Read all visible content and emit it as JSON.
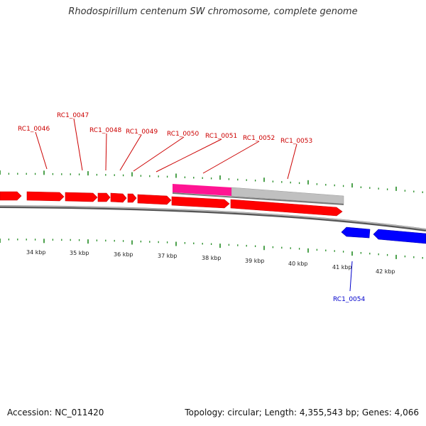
{
  "title": "Rhodospirillum centenum SW chromosome, complete genome",
  "footer": {
    "accession_text": "Accession: NC_011420",
    "summary_text": "Topology: circular; Length: 4,355,543 bp; Genes: 4,066"
  },
  "colors": {
    "forward_gene": "#ff0000",
    "reverse_gene": "#0000ff",
    "tick": "#228b22",
    "backbone": "#888888",
    "highlight_pink": "#ff1493",
    "highlight_grey": "#c0c0c0",
    "forward_label": "#cc0000",
    "reverse_label": "#0000cc"
  },
  "scale_labels": [
    "34 kbp",
    "35 kbp",
    "36 kbp",
    "37 kbp",
    "38 kbp",
    "39 kbp",
    "40 kbp",
    "41 kbp",
    "42 kbp"
  ],
  "genes": [
    {
      "label": "RC1_0046",
      "strand": "forward"
    },
    {
      "label": "RC1_0047",
      "strand": "forward"
    },
    {
      "label": "RC1_0048",
      "strand": "forward"
    },
    {
      "label": "RC1_0049",
      "strand": "forward"
    },
    {
      "label": "RC1_0050",
      "strand": "forward"
    },
    {
      "label": "RC1_0051",
      "strand": "forward"
    },
    {
      "label": "RC1_0052",
      "strand": "forward"
    },
    {
      "label": "RC1_0053",
      "strand": "forward"
    },
    {
      "label": "RC1_0054",
      "strand": "reverse"
    }
  ]
}
